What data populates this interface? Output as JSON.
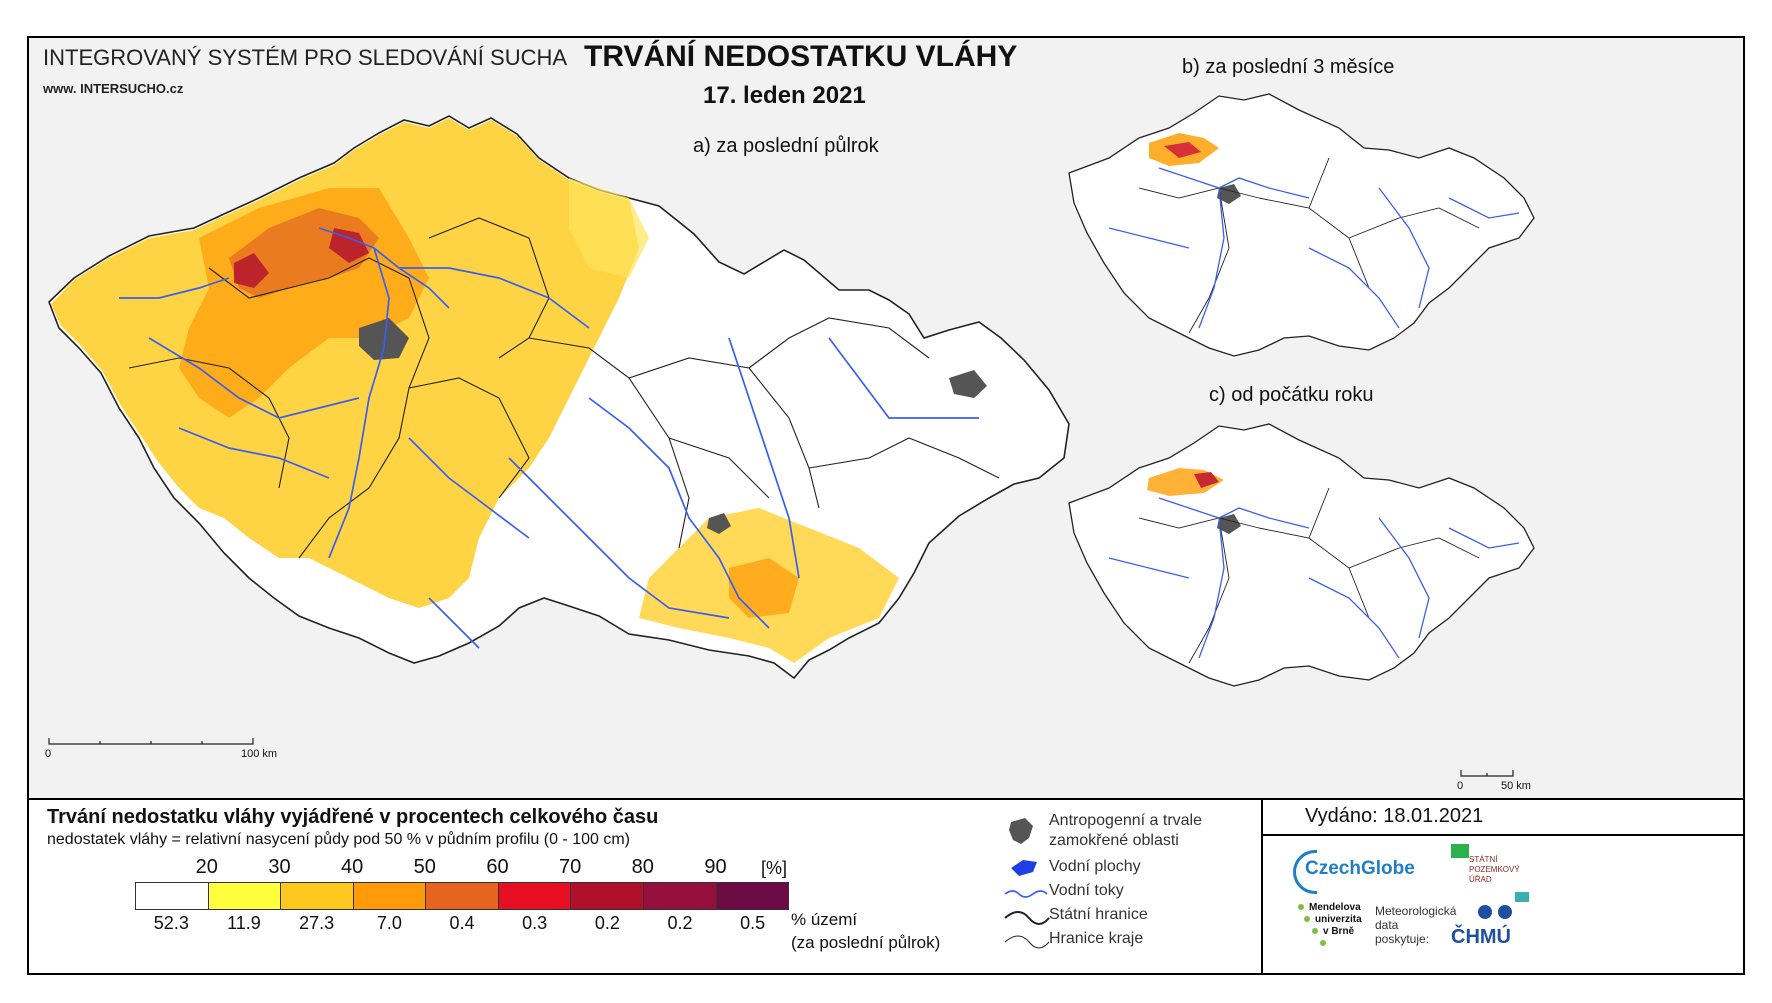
{
  "header": {
    "system_title": "INTEGROVANÝ SYSTÉM PRO SLEDOVÁNÍ SUCHA",
    "website": "www. INTERSUCHO.cz",
    "main_title": "TRVÁNÍ NEDOSTATKU VLÁHY",
    "date": "17. leden 2021"
  },
  "maps": {
    "a_label": "a) za poslední půlrok",
    "b_label": "b) za poslední 3 měsíce",
    "c_label": "c) od počátku roku",
    "scale_main": {
      "start": "0",
      "end": "100 km"
    },
    "scale_small": {
      "start": "0",
      "end": "50 km"
    }
  },
  "legend": {
    "title": "Trvání nedostatku vláhy vyjádřené v procentech celkového času",
    "subtitle": "nedostatek vláhy = relativní nasycení půdy pod 50 % v půdním profilu (0 - 100 cm)",
    "unit": "[%]",
    "thresholds": [
      "20",
      "30",
      "40",
      "50",
      "60",
      "70",
      "80",
      "90"
    ],
    "colors": [
      "#ffffff",
      "#ffff3c",
      "#ffc81e",
      "#ff9a0a",
      "#e6641e",
      "#e60f23",
      "#b40f28",
      "#960f3c",
      "#6e0a46"
    ],
    "area_values": [
      "52.3",
      "11.9",
      "27.3",
      "7.0",
      "0.4",
      "0.3",
      "0.2",
      "0.2",
      "0.5"
    ],
    "area_label_1": "% území",
    "area_label_2": "(za poslední půlrok)"
  },
  "symbols": {
    "urban": "Antropogenní a trvale",
    "urban_2": "zamokřené oblasti",
    "water_bodies": "Vodní plochy",
    "rivers": "Vodní toky",
    "state_border": "Státní hranice",
    "region_border": "Hranice kraje"
  },
  "issued": {
    "text": "Vydáno: 18.01.2021"
  },
  "logos": {
    "czechglobe": "CzechGlobe",
    "spu_1": "STÁTNÍ",
    "spu_2": "POZEMKOVÝ",
    "spu_3": "ÚŘAD",
    "mendel_1": "Mendelova",
    "mendel_2": "univerzita",
    "mendel_3": "v Brně",
    "met_1": "Meteorologická",
    "met_2": "data",
    "met_3": "poskytuje:",
    "chmu": "ČHMÚ"
  }
}
